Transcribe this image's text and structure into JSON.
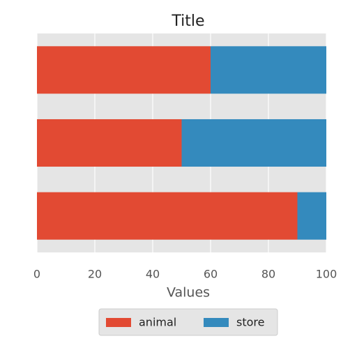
{
  "chart_data": {
    "type": "barh_stacked",
    "title": "Title",
    "xlabel": "Values",
    "categories": [
      null,
      null,
      null
    ],
    "series": [
      {
        "name": "animal",
        "color": "#E24A33",
        "values": [
          90,
          50,
          60
        ]
      },
      {
        "name": "store",
        "color": "#348ABD",
        "values": [
          10,
          50,
          40
        ]
      }
    ],
    "xlim": [
      0,
      100
    ],
    "xticks": [
      0,
      20,
      40,
      60,
      80,
      100
    ],
    "grid": true,
    "legend": "bottom"
  }
}
